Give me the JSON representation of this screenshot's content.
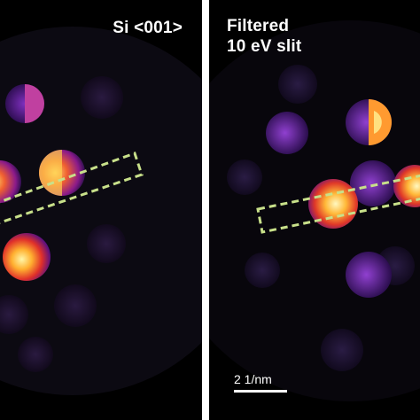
{
  "panels": {
    "left": {
      "label": "Si <001>"
    },
    "right": {
      "label_line1": "Filtered",
      "label_line2": "10 eV slit",
      "scale_bar": "2 1/nm"
    }
  },
  "colors": {
    "background": "#000000",
    "divider": "#ffffff",
    "dashed_box": "#c8e08a"
  }
}
